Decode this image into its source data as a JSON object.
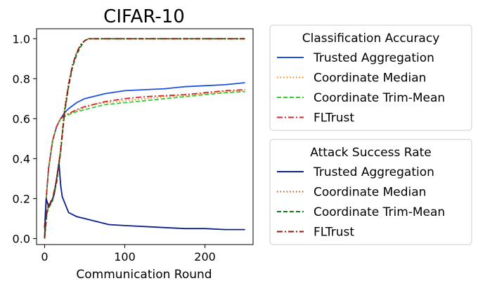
{
  "chart_data": {
    "type": "line",
    "title": "CIFAR-10",
    "xlabel": "Communication Round",
    "ylabel": "",
    "xlim": [
      -10,
      260
    ],
    "ylim": [
      -0.03,
      1.05
    ],
    "x_ticks": [
      0,
      100,
      200
    ],
    "x_tick_labels": [
      "0",
      "100",
      "200"
    ],
    "y_ticks": [
      0.0,
      0.2,
      0.4,
      0.6,
      0.8,
      1.0
    ],
    "y_tick_labels": [
      "0.0",
      "0.2",
      "0.4",
      "0.6",
      "0.8",
      "1.0"
    ],
    "grid": false,
    "legend_placement": "outside-right",
    "legends": [
      {
        "title": "Classification Accuracy",
        "entries": [
          {
            "name": "Trusted Aggregation",
            "color": "#1f4fe0",
            "dash": "solid"
          },
          {
            "name": "Coordinate Median",
            "color": "#ff7f0e",
            "dash": "dotted"
          },
          {
            "name": "Coordinate Trim-Mean",
            "color": "#32cd32",
            "dash": "dashed"
          },
          {
            "name": "FLTrust",
            "color": "#d62728",
            "dash": "dashdot"
          }
        ]
      },
      {
        "title": "Attack Success Rate",
        "entries": [
          {
            "name": "Trusted Aggregation",
            "color": "#0a1f8a",
            "dash": "solid"
          },
          {
            "name": "Coordinate Median",
            "color": "#c84a0c",
            "dash": "dotted"
          },
          {
            "name": "Coordinate Trim-Mean",
            "color": "#0e7a1a",
            "dash": "dashed"
          },
          {
            "name": "FLTrust",
            "color": "#8b1a0a",
            "dash": "dashdot"
          }
        ]
      }
    ],
    "series": [
      {
        "group": "Classification Accuracy",
        "name": "Trusted Aggregation",
        "color": "#1f4fe0",
        "dash": "solid",
        "x": [
          0,
          2,
          5,
          10,
          15,
          20,
          25,
          30,
          40,
          50,
          60,
          75,
          100,
          125,
          150,
          175,
          200,
          225,
          250
        ],
        "y": [
          0.05,
          0.2,
          0.35,
          0.49,
          0.56,
          0.6,
          0.63,
          0.65,
          0.68,
          0.7,
          0.71,
          0.725,
          0.74,
          0.745,
          0.75,
          0.76,
          0.765,
          0.77,
          0.78
        ]
      },
      {
        "group": "Classification Accuracy",
        "name": "Coordinate Median",
        "color": "#ff7f0e",
        "dash": "dotted",
        "x": [
          0,
          2,
          5,
          10,
          15,
          20,
          25,
          30,
          40,
          50,
          60,
          75,
          100,
          125,
          150,
          175,
          200,
          225,
          250
        ],
        "y": [
          0.05,
          0.2,
          0.35,
          0.49,
          0.56,
          0.6,
          0.61,
          0.62,
          0.64,
          0.655,
          0.67,
          0.68,
          0.69,
          0.7,
          0.71,
          0.715,
          0.725,
          0.735,
          0.74
        ]
      },
      {
        "group": "Classification Accuracy",
        "name": "Coordinate Trim-Mean",
        "color": "#32cd32",
        "dash": "dashed",
        "x": [
          0,
          2,
          5,
          10,
          15,
          20,
          25,
          30,
          40,
          50,
          60,
          75,
          100,
          125,
          150,
          175,
          200,
          225,
          250
        ],
        "y": [
          0.05,
          0.2,
          0.35,
          0.49,
          0.56,
          0.6,
          0.61,
          0.62,
          0.635,
          0.645,
          0.655,
          0.67,
          0.68,
          0.69,
          0.7,
          0.71,
          0.72,
          0.73,
          0.735
        ]
      },
      {
        "group": "Classification Accuracy",
        "name": "FLTrust",
        "color": "#d62728",
        "dash": "dashdot",
        "x": [
          0,
          2,
          5,
          10,
          15,
          20,
          25,
          30,
          40,
          50,
          60,
          75,
          100,
          125,
          150,
          175,
          200,
          225,
          250
        ],
        "y": [
          0.05,
          0.2,
          0.35,
          0.49,
          0.56,
          0.6,
          0.615,
          0.625,
          0.645,
          0.66,
          0.67,
          0.685,
          0.7,
          0.71,
          0.715,
          0.72,
          0.73,
          0.74,
          0.745
        ]
      },
      {
        "group": "Attack Success Rate",
        "name": "Trusted Aggregation",
        "color": "#0a1f8a",
        "dash": "solid",
        "x": [
          0,
          2,
          5,
          8,
          12,
          15,
          18,
          20,
          22,
          25,
          28,
          30,
          35,
          40,
          50,
          60,
          70,
          80,
          100,
          125,
          150,
          175,
          200,
          225,
          250
        ],
        "y": [
          0.0,
          0.2,
          0.16,
          0.18,
          0.22,
          0.3,
          0.38,
          0.27,
          0.21,
          0.18,
          0.15,
          0.13,
          0.12,
          0.11,
          0.1,
          0.09,
          0.08,
          0.07,
          0.065,
          0.06,
          0.055,
          0.05,
          0.05,
          0.045,
          0.045
        ]
      },
      {
        "group": "Attack Success Rate",
        "name": "Coordinate Median",
        "color": "#c84a0c",
        "dash": "dotted",
        "x": [
          0,
          3,
          6,
          10,
          15,
          20,
          25,
          30,
          35,
          40,
          45,
          50,
          55,
          60,
          70,
          100,
          150,
          200,
          250
        ],
        "y": [
          0.0,
          0.15,
          0.18,
          0.2,
          0.3,
          0.45,
          0.65,
          0.78,
          0.87,
          0.93,
          0.97,
          0.99,
          1.0,
          1.0,
          1.0,
          1.0,
          1.0,
          1.0,
          1.0
        ]
      },
      {
        "group": "Attack Success Rate",
        "name": "Coordinate Trim-Mean",
        "color": "#0e7a1a",
        "dash": "dashed",
        "x": [
          0,
          3,
          6,
          10,
          15,
          20,
          25,
          30,
          35,
          40,
          45,
          50,
          55,
          60,
          70,
          100,
          150,
          200,
          250
        ],
        "y": [
          0.0,
          0.13,
          0.16,
          0.19,
          0.28,
          0.43,
          0.63,
          0.76,
          0.86,
          0.92,
          0.96,
          0.99,
          1.0,
          1.0,
          1.0,
          1.0,
          1.0,
          1.0,
          1.0
        ]
      },
      {
        "group": "Attack Success Rate",
        "name": "FLTrust",
        "color": "#8b1a0a",
        "dash": "dashdot",
        "x": [
          0,
          3,
          6,
          10,
          15,
          20,
          25,
          30,
          35,
          40,
          45,
          50,
          55,
          60,
          70,
          100,
          150,
          200,
          250
        ],
        "y": [
          0.0,
          0.14,
          0.17,
          0.2,
          0.29,
          0.44,
          0.64,
          0.77,
          0.87,
          0.93,
          0.97,
          0.99,
          1.0,
          1.0,
          1.0,
          1.0,
          1.0,
          1.0,
          1.0
        ]
      }
    ]
  }
}
